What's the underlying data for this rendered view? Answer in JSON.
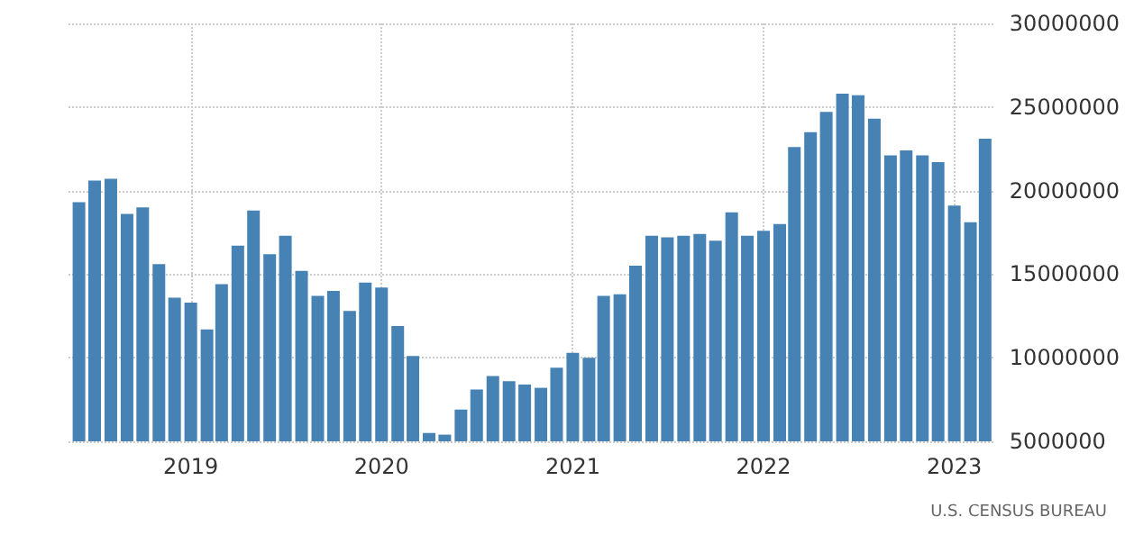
{
  "chart_data": {
    "type": "bar",
    "color": "#4682b4",
    "x": [
      "2018-06",
      "2018-07",
      "2018-08",
      "2018-09",
      "2018-10",
      "2018-11",
      "2018-12",
      "2019-01",
      "2019-02",
      "2019-03",
      "2019-04",
      "2019-05",
      "2019-06",
      "2019-07",
      "2019-08",
      "2019-09",
      "2019-10",
      "2019-11",
      "2019-12",
      "2020-01",
      "2020-02",
      "2020-03",
      "2020-04",
      "2020-05",
      "2020-06",
      "2020-07",
      "2020-08",
      "2020-09",
      "2020-10",
      "2020-11",
      "2020-12",
      "2021-01",
      "2021-02",
      "2021-03",
      "2021-04",
      "2021-05",
      "2021-06",
      "2021-07",
      "2021-08",
      "2021-09",
      "2021-10",
      "2021-11",
      "2021-12",
      "2022-01",
      "2022-02",
      "2022-03",
      "2022-04",
      "2022-05",
      "2022-06",
      "2022-07",
      "2022-08",
      "2022-09",
      "2022-10",
      "2022-11",
      "2022-12",
      "2023-01",
      "2023-02",
      "2023-03"
    ],
    "values": [
      19300000,
      20600000,
      20700000,
      18600000,
      19000000,
      15600000,
      13600000,
      13300000,
      11700000,
      14400000,
      16700000,
      18800000,
      16200000,
      17300000,
      15200000,
      13700000,
      14000000,
      12800000,
      14500000,
      14200000,
      11900000,
      10100000,
      5500000,
      5400000,
      6900000,
      8100000,
      8900000,
      8600000,
      8400000,
      8200000,
      9400000,
      10300000,
      10000000,
      13700000,
      13800000,
      15500000,
      17300000,
      17200000,
      17300000,
      17400000,
      17000000,
      18700000,
      17300000,
      17600000,
      18000000,
      22600000,
      23500000,
      24700000,
      25800000,
      25700000,
      24300000,
      22100000,
      22400000,
      22100000,
      21700000,
      19100000,
      18100000,
      23100000
    ],
    "xlim": [
      "2018-05-12",
      "2023-03-20"
    ],
    "xticks": [
      {
        "value": "2019-01",
        "label": "2019"
      },
      {
        "value": "2020-01",
        "label": "2020"
      },
      {
        "value": "2021-01",
        "label": "2021"
      },
      {
        "value": "2022-01",
        "label": "2022"
      },
      {
        "value": "2023-01",
        "label": "2023"
      }
    ],
    "ylim": [
      5000000,
      30000000
    ],
    "yticks": [
      5000000,
      10000000,
      15000000,
      20000000,
      25000000,
      30000000
    ],
    "grid": true,
    "annotations": [
      "U.S. CENSUS BUREAU"
    ]
  }
}
